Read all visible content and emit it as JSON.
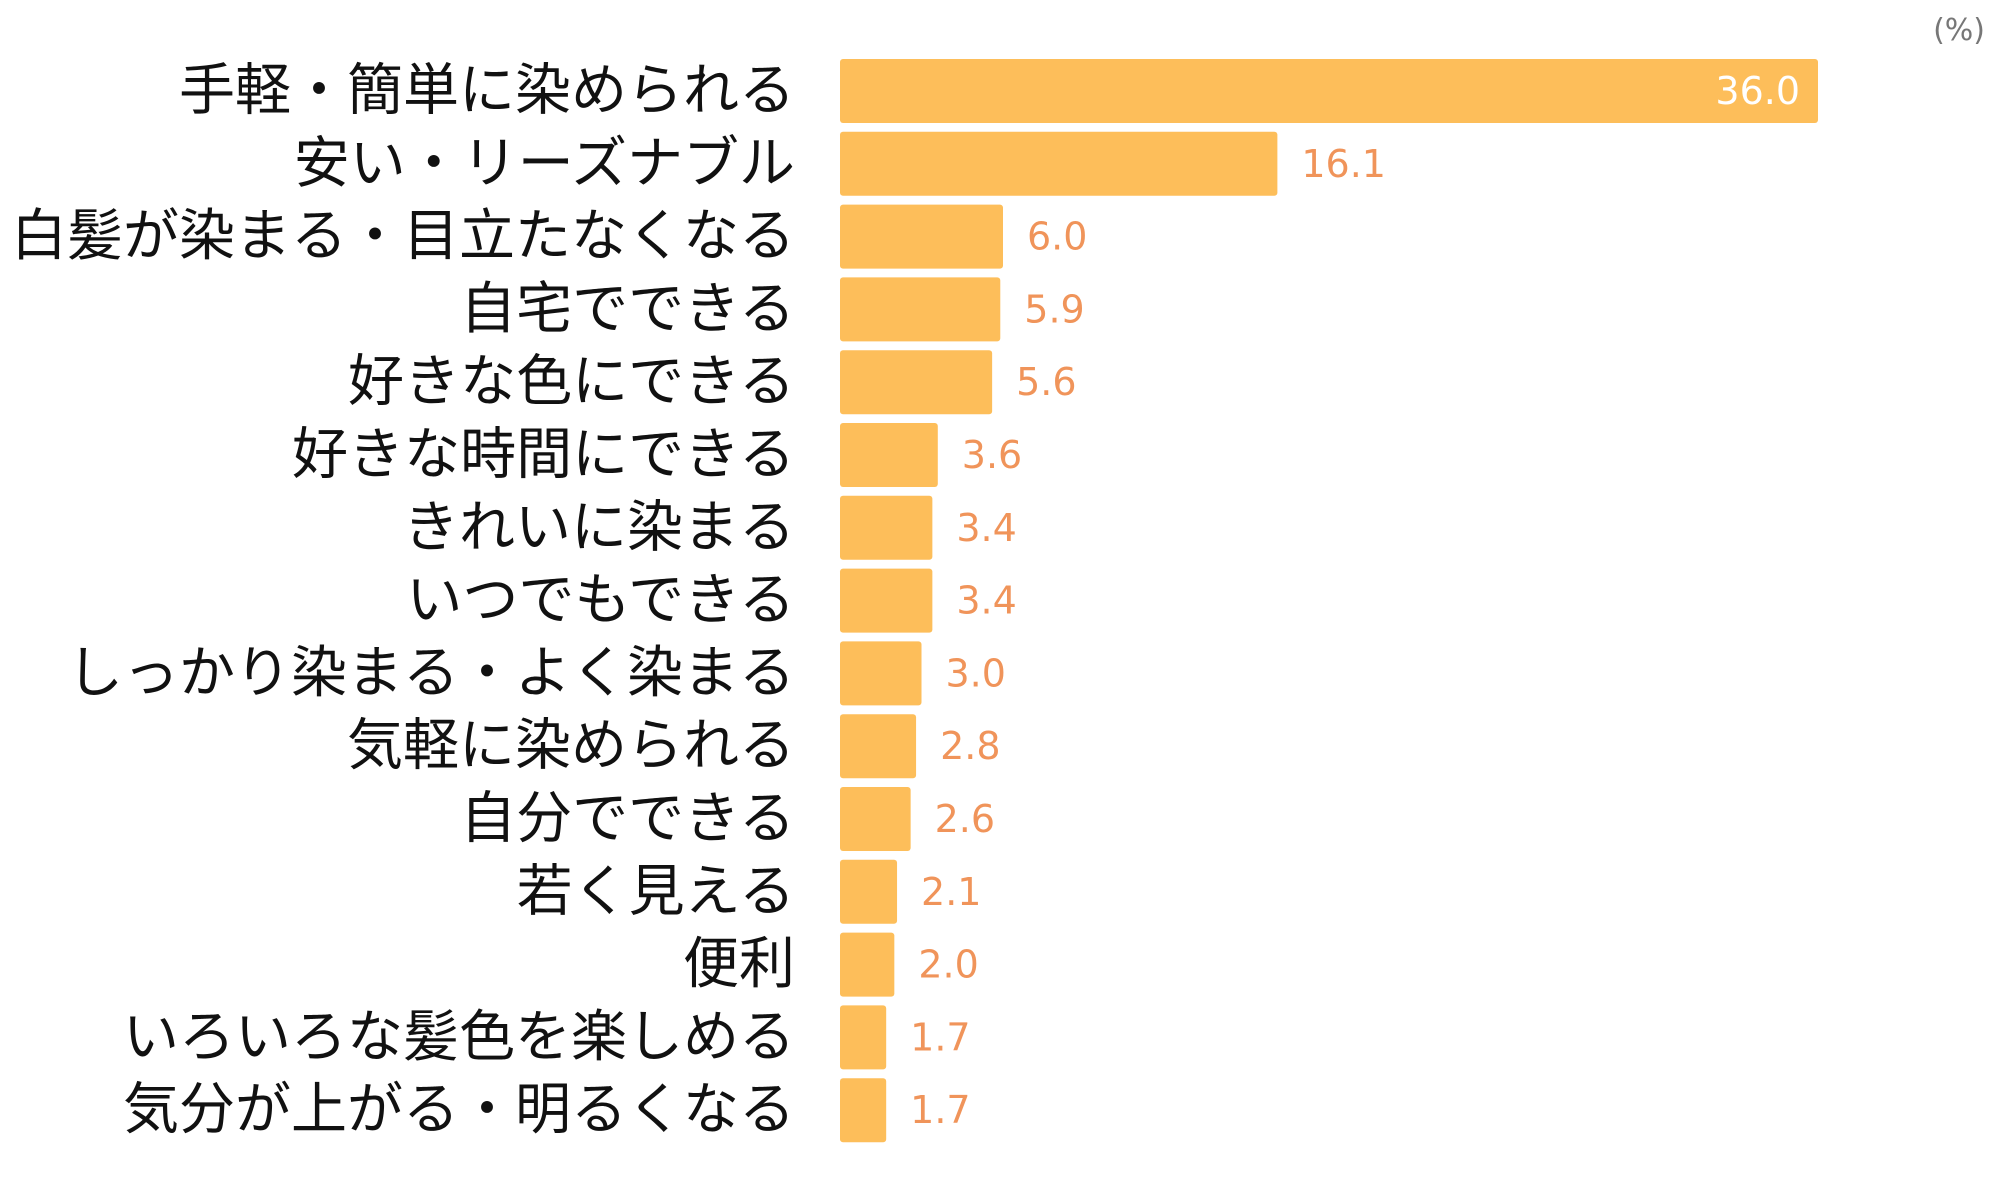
{
  "unit_label": "(%)",
  "colors": {
    "bar": "#FDBE5A",
    "value_label": "#F0945A",
    "value_label_inside": "#ffffff",
    "category_text": "#111111"
  },
  "chart_data": {
    "type": "bar",
    "orientation": "horizontal",
    "title": "",
    "xlabel": "",
    "ylabel": "",
    "unit": "(%)",
    "grid": false,
    "legend": "none",
    "xlim": [
      0,
      36.0
    ],
    "categories": [
      "手軽・簡単に染められる",
      "安い・リーズナブル",
      "白髪が染まる・目立たなくなる",
      "自宅でできる",
      "好きな色にできる",
      "好きな時間にできる",
      "きれいに染まる",
      "いつでもできる",
      "しっかり染まる・よく染まる",
      "気軽に染められる",
      "自分でできる",
      "若く見える",
      "便利",
      "いろいろな髪色を楽しめる",
      "気分が上がる・明るくなる"
    ],
    "values": [
      36.0,
      16.1,
      6.0,
      5.9,
      5.6,
      3.6,
      3.4,
      3.4,
      3.0,
      2.8,
      2.6,
      2.1,
      2.0,
      1.7,
      1.7
    ],
    "value_labels": [
      "36.0",
      "16.1",
      "6.0",
      "5.9",
      "5.6",
      "3.6",
      "3.4",
      "3.4",
      "3.0",
      "2.8",
      "2.6",
      "2.1",
      "2.0",
      "1.7",
      "1.7"
    ]
  }
}
